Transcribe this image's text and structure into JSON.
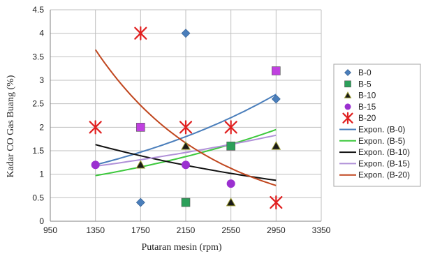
{
  "chart_data": {
    "type": "scatter",
    "title": "",
    "xlabel": "Putaran mesin (rpm)",
    "ylabel": "Kadar CO Gas Buang (%)",
    "xlim": [
      950,
      3350
    ],
    "ylim": [
      0,
      4.5
    ],
    "xticks": [
      "950",
      "1350",
      "1750",
      "2150",
      "2550",
      "2950",
      "3350"
    ],
    "xtick_values": [
      950,
      1350,
      1750,
      2150,
      2550,
      2950,
      3350
    ],
    "yticks": [
      "0",
      "0.5",
      "1",
      "1.5",
      "2",
      "2.5",
      "3",
      "3.5",
      "4",
      "4.5"
    ],
    "ytick_values": [
      0,
      0.5,
      1,
      1.5,
      2,
      2.5,
      3,
      3.5,
      4,
      4.5
    ],
    "grid": true,
    "legend_position": "right",
    "series": [
      {
        "name": "B-0",
        "marker": "diamond",
        "color": "#4a7ebb",
        "points": [
          [
            1750,
            0.4
          ],
          [
            2150,
            4.0
          ],
          [
            2950,
            2.6
          ]
        ]
      },
      {
        "name": "B-5",
        "marker": "square",
        "color": "#2ca05a",
        "points": [
          [
            2150,
            0.4
          ],
          [
            2550,
            1.6
          ]
        ]
      },
      {
        "name": "B-10",
        "marker": "triangle",
        "color": "#1a1a1a",
        "points": [
          [
            1750,
            1.2
          ],
          [
            2150,
            1.6
          ],
          [
            2550,
            0.4
          ],
          [
            2950,
            1.6
          ]
        ]
      },
      {
        "name": "B-15",
        "marker": "circle",
        "color": "#9b30d0",
        "points": [
          [
            1350,
            1.2
          ],
          [
            2150,
            1.2
          ],
          [
            2550,
            0.8
          ]
        ]
      },
      {
        "name": "B-20",
        "marker": "star",
        "color": "#e02020",
        "points": [
          [
            1350,
            2.0
          ],
          [
            1750,
            4.0
          ],
          [
            2150,
            2.0
          ],
          [
            2550,
            2.0
          ],
          [
            2950,
            0.4
          ]
        ]
      }
    ],
    "square_markers": [
      {
        "series": "B-15",
        "color": "#c040e0",
        "points": [
          [
            1750,
            2.0
          ],
          [
            2950,
            3.2
          ]
        ]
      }
    ],
    "trendlines": [
      {
        "name": "Expon. (B-0)",
        "color": "#4a7ebb",
        "x": [
          1350,
          2950
        ],
        "y": [
          1.2,
          2.7
        ]
      },
      {
        "name": "Expon. (B-5)",
        "color": "#3cc83c",
        "x": [
          1350,
          2950
        ],
        "y": [
          0.97,
          1.95
        ]
      },
      {
        "name": "Expon. (B-10)",
        "color": "#111111",
        "x": [
          1350,
          2950
        ],
        "y": [
          1.63,
          0.87
        ]
      },
      {
        "name": "Expon. (B-15)",
        "color": "#b090d8",
        "x": [
          1350,
          2950
        ],
        "y": [
          1.17,
          1.83
        ]
      },
      {
        "name": "Expon. (B-20)",
        "color": "#c0461e",
        "x": [
          1350,
          2950
        ],
        "y": [
          3.65,
          0.76
        ]
      }
    ]
  }
}
